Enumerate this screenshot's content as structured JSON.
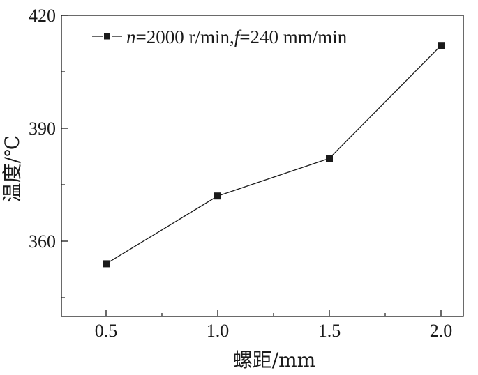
{
  "chart_data": {
    "type": "line",
    "title": "",
    "xlabel": "螺距/mm",
    "ylabel": "温度/℃",
    "x": [
      0.5,
      1.0,
      1.5,
      2.0
    ],
    "xticks": [
      "0.5",
      "1.0",
      "1.5",
      "2.0"
    ],
    "yticks": [
      "360",
      "390",
      "420"
    ],
    "xlim": [
      0.3,
      2.1
    ],
    "ylim": [
      340,
      420
    ],
    "series": [
      {
        "name": "n=2000 r/min,f=240 mm/min",
        "legend": {
          "n_var": "n",
          "n_value": "=2000 r/min,",
          "f_var": "f",
          "f_value": "=240 mm/min"
        },
        "values": [
          354,
          372,
          382,
          412
        ],
        "color": "#1a1a1a",
        "marker": "square"
      }
    ],
    "grid": false,
    "legend_position": "top-left"
  }
}
